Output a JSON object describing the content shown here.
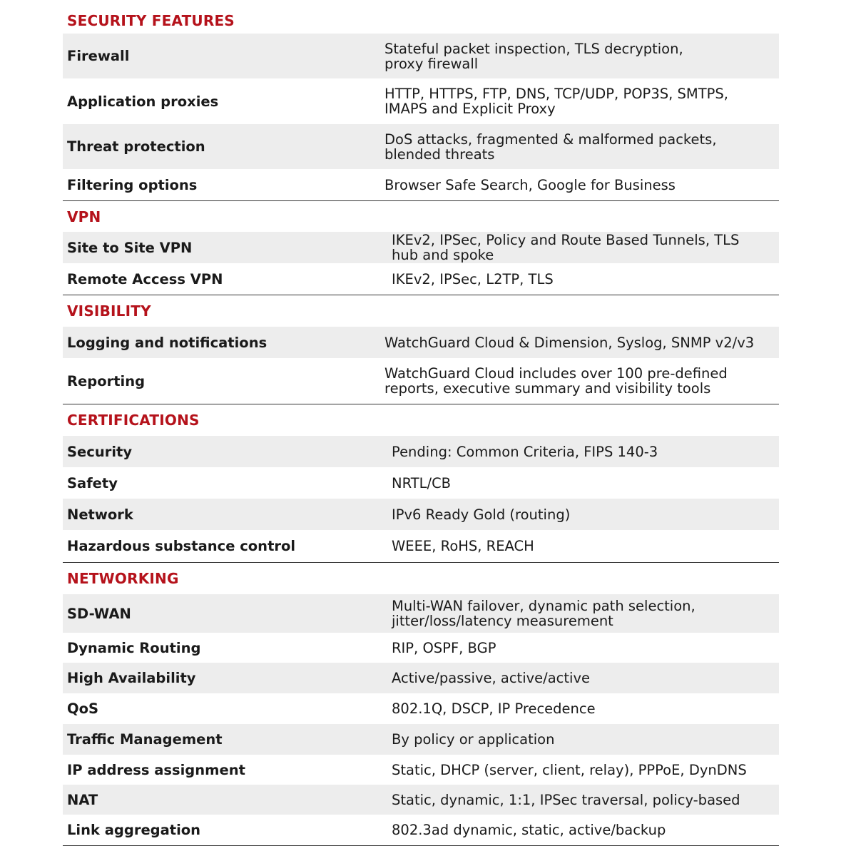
{
  "colors": {
    "section_heading": "#b5121b",
    "row_shade": "#ededed",
    "rule": "#333333"
  },
  "sections": [
    {
      "title": "SECURITY FEATURES",
      "rows": [
        {
          "label": "Firewall",
          "value": "Stateful packet inspection, TLS decryption,\nproxy firewall"
        },
        {
          "label": "Application proxies",
          "value": "HTTP, HTTPS, FTP, DNS, TCP/UDP, POP3S, SMTPS,\nIMAPS and Explicit Proxy"
        },
        {
          "label": "Threat protection",
          "value": "DoS attacks, fragmented & malformed packets,\nblended threats"
        },
        {
          "label": "Filtering options",
          "value": "Browser Safe Search, Google for Business"
        }
      ]
    },
    {
      "title": "VPN",
      "rows": [
        {
          "label": "Site to Site VPN",
          "value": "IKEv2, IPSec, Policy and Route Based Tunnels, TLS\nhub and spoke"
        },
        {
          "label": "Remote Access VPN",
          "value": "IKEv2, IPSec, L2TP, TLS"
        }
      ]
    },
    {
      "title": "VISIBILITY",
      "rows": [
        {
          "label": "Logging and notifications",
          "value": "WatchGuard Cloud & Dimension, Syslog, SNMP v2/v3"
        },
        {
          "label": "Reporting",
          "value": "WatchGuard Cloud includes over 100 pre-defined\nreports, executive summary and visibility tools"
        }
      ]
    },
    {
      "title": "CERTIFICATIONS",
      "rows": [
        {
          "label": "Security",
          "value": "Pending:  Common Criteria, FIPS 140-3"
        },
        {
          "label": "Safety",
          "value": "NRTL/CB"
        },
        {
          "label": "Network",
          "value": "IPv6 Ready Gold (routing)"
        },
        {
          "label": "Hazardous substance control",
          "value": "WEEE, RoHS, REACH"
        }
      ]
    },
    {
      "title": "NETWORKING",
      "rows": [
        {
          "label": "SD-WAN",
          "value": "Multi-WAN failover, dynamic path selection,\njitter/loss/latency measurement"
        },
        {
          "label": "Dynamic Routing",
          "value": "RIP, OSPF, BGP"
        },
        {
          "label": "High Availability",
          "value": "Active/passive, active/active"
        },
        {
          "label": "QoS",
          "value": "802.1Q, DSCP, IP Precedence"
        },
        {
          "label": "Traffic Management",
          "value": "By policy or application"
        },
        {
          "label": "IP address assignment",
          "value": "Static, DHCP (server, client, relay), PPPoE, DynDNS"
        },
        {
          "label": "NAT",
          "value": "Static, dynamic, 1:1, IPSec traversal, policy-based"
        },
        {
          "label": "Link aggregation",
          "value": "802.3ad dynamic, static, active/backup"
        }
      ]
    }
  ]
}
